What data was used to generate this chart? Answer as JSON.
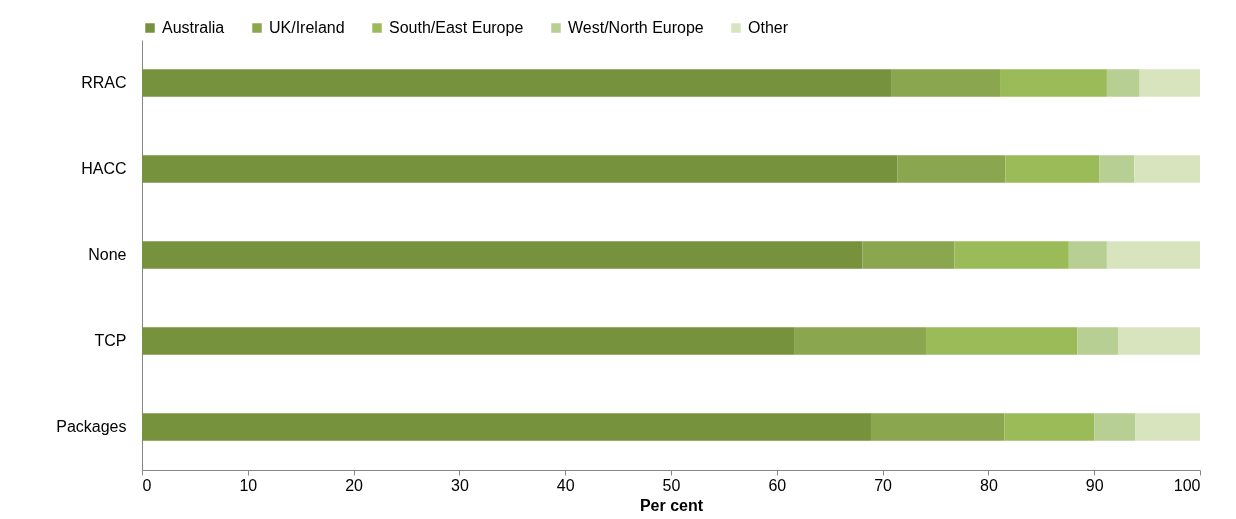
{
  "chart_data": {
    "type": "bar",
    "orientation": "horizontal",
    "stacked": true,
    "xlabel": "Per cent",
    "categories": [
      "RRAC",
      "HACC",
      "None",
      "TCP",
      "Packages"
    ],
    "series": [
      {
        "name": "Australia",
        "color": "#76923c",
        "values": [
          70.8,
          71.4,
          68.1,
          61.7,
          68.9
        ]
      },
      {
        "name": "UK/Ireland",
        "color": "#8aa64e",
        "values": [
          10.3,
          10.2,
          8.7,
          12.4,
          12.6
        ]
      },
      {
        "name": "South/East Europe",
        "color": "#9bbb59",
        "values": [
          10.1,
          8.9,
          10.8,
          14.3,
          8.5
        ]
      },
      {
        "name": "West/North Europe",
        "color": "#b8cf93",
        "values": [
          3.1,
          3.3,
          3.6,
          3.9,
          3.9
        ]
      },
      {
        "name": "Other",
        "color": "#d7e4bd",
        "values": [
          5.7,
          6.2,
          8.8,
          7.7,
          6.1
        ]
      }
    ],
    "xlim": [
      0,
      100
    ],
    "xticks": [
      0,
      10,
      20,
      30,
      40,
      50,
      60,
      70,
      80,
      90,
      100
    ],
    "grid": false,
    "legend": "top"
  }
}
